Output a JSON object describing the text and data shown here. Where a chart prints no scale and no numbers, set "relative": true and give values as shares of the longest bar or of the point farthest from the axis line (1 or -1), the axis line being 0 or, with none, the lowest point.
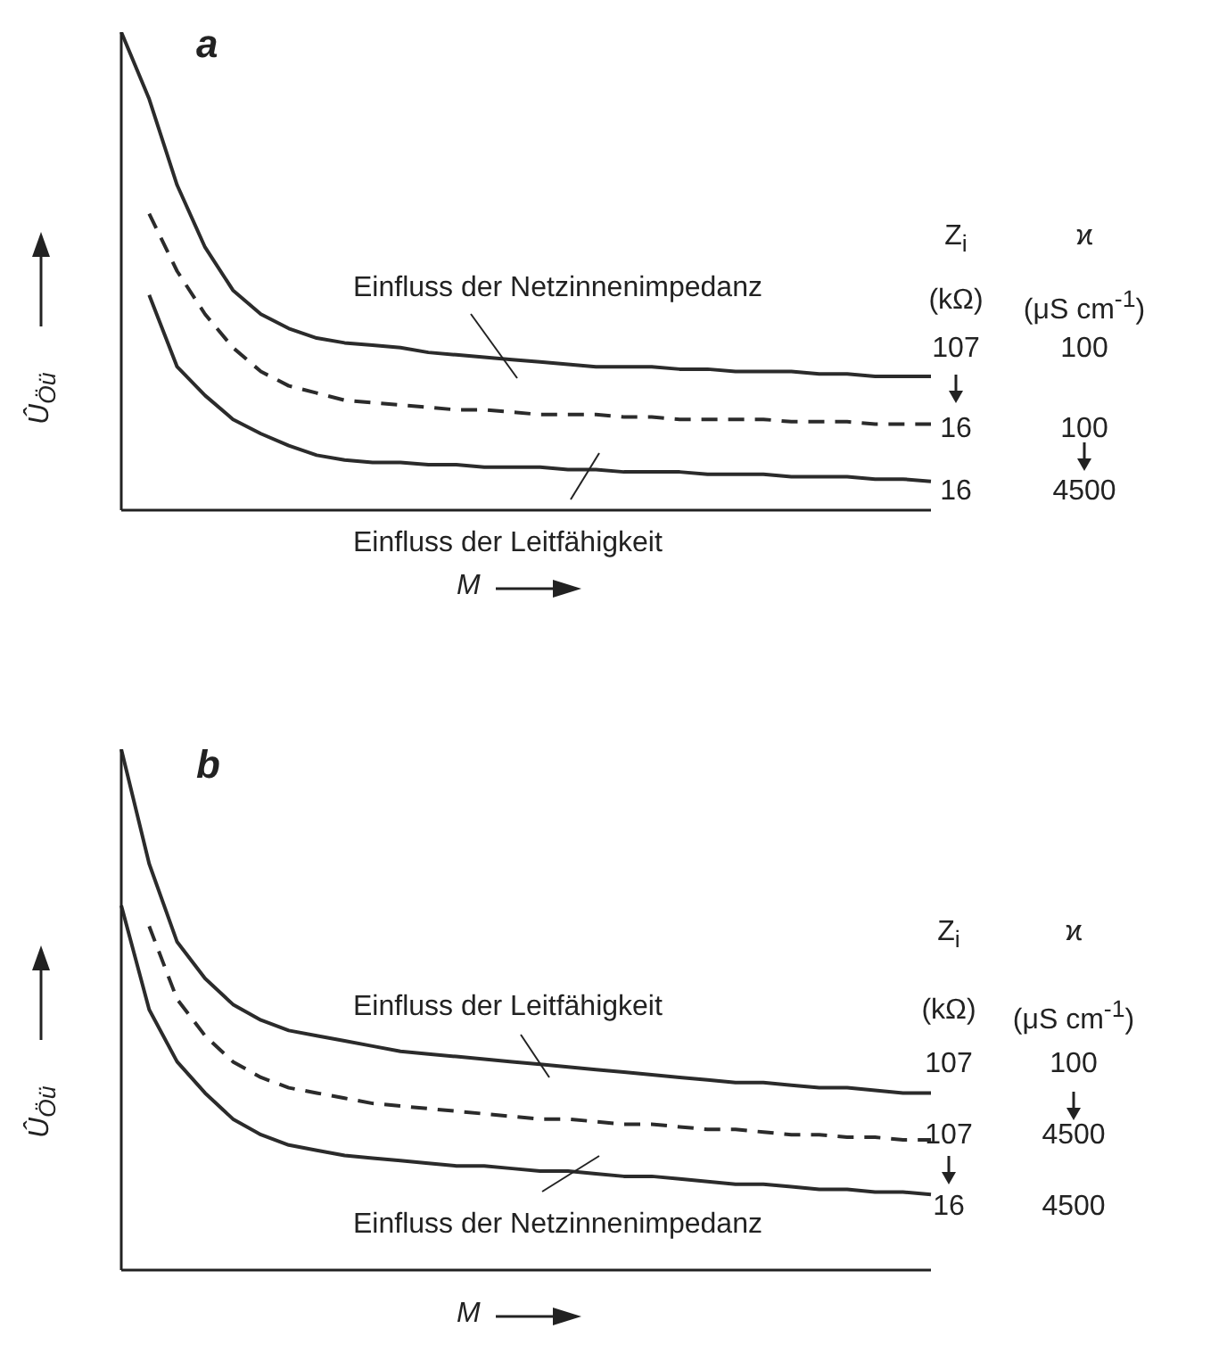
{
  "chart_data": [
    {
      "type": "line",
      "title": "a",
      "xlabel": "M",
      "ylabel": "Û$_{Öü}$",
      "relative": true,
      "legend": false,
      "grid": false,
      "marker": "none",
      "categories": [
        null,
        null,
        null,
        null,
        null,
        null,
        null,
        null,
        null,
        null,
        null,
        null,
        null,
        null,
        null,
        null,
        null,
        null,
        null,
        null,
        null,
        null,
        null,
        null,
        null,
        null,
        null,
        null,
        null,
        null
      ],
      "series": [
        {
          "color": "#2b2b2b",
          "line_style": "solid",
          "values": [
            1.0,
            0.86,
            0.68,
            0.55,
            0.46,
            0.41,
            0.38,
            0.36,
            0.35,
            0.345,
            0.34,
            0.33,
            0.325,
            0.32,
            0.315,
            0.31,
            0.305,
            0.3,
            0.3,
            0.3,
            0.295,
            0.295,
            0.29,
            0.29,
            0.29,
            0.285,
            0.285,
            0.28,
            0.28,
            0.28
          ]
        },
        {
          "color": "#2b2b2b",
          "line_style": "dashed",
          "values": [
            null,
            0.62,
            0.5,
            0.41,
            0.34,
            0.29,
            0.26,
            0.245,
            0.23,
            0.225,
            0.22,
            0.215,
            0.21,
            0.21,
            0.205,
            0.2,
            0.2,
            0.2,
            0.195,
            0.195,
            0.19,
            0.19,
            0.19,
            0.19,
            0.185,
            0.185,
            0.185,
            0.18,
            0.18,
            0.18
          ]
        },
        {
          "color": "#2b2b2b",
          "line_style": "solid",
          "values": [
            null,
            0.45,
            0.3,
            0.24,
            0.19,
            0.16,
            0.135,
            0.115,
            0.105,
            0.1,
            0.1,
            0.095,
            0.095,
            0.09,
            0.09,
            0.09,
            0.085,
            0.085,
            0.08,
            0.08,
            0.08,
            0.075,
            0.075,
            0.075,
            0.07,
            0.07,
            0.07,
            0.065,
            0.065,
            0.06
          ]
        }
      ],
      "annotations": [
        "Einfluss der Netzinnenimpedanz",
        "Einfluss der Leitfähigkeit",
        "Z$_{i}$",
        "ϰ",
        "(kΩ)",
        "(μS cm$^{-1}$)",
        "107",
        "100",
        "16",
        "100",
        "16",
        "4500"
      ]
    },
    {
      "type": "line",
      "title": "b",
      "xlabel": "M",
      "ylabel": "Û$_{Öü}$",
      "relative": true,
      "legend": false,
      "grid": false,
      "marker": "none",
      "categories": [
        null,
        null,
        null,
        null,
        null,
        null,
        null,
        null,
        null,
        null,
        null,
        null,
        null,
        null,
        null,
        null,
        null,
        null,
        null,
        null,
        null,
        null,
        null,
        null,
        null,
        null,
        null,
        null,
        null,
        null
      ],
      "series": [
        {
          "color": "#2b2b2b",
          "line_style": "solid",
          "values": [
            1.0,
            0.78,
            0.63,
            0.56,
            0.51,
            0.48,
            0.46,
            0.45,
            0.44,
            0.43,
            0.42,
            0.415,
            0.41,
            0.405,
            0.4,
            0.395,
            0.39,
            0.385,
            0.38,
            0.375,
            0.37,
            0.365,
            0.36,
            0.36,
            0.355,
            0.35,
            0.35,
            0.345,
            0.34,
            0.34
          ]
        },
        {
          "color": "#2b2b2b",
          "line_style": "dashed",
          "values": [
            null,
            0.66,
            0.52,
            0.45,
            0.4,
            0.37,
            0.35,
            0.34,
            0.33,
            0.32,
            0.315,
            0.31,
            0.305,
            0.3,
            0.295,
            0.29,
            0.29,
            0.285,
            0.28,
            0.28,
            0.275,
            0.27,
            0.27,
            0.265,
            0.26,
            0.26,
            0.255,
            0.255,
            0.25,
            0.25
          ]
        },
        {
          "color": "#2b2b2b",
          "line_style": "solid",
          "values": [
            0.7,
            0.5,
            0.4,
            0.34,
            0.29,
            0.26,
            0.24,
            0.23,
            0.22,
            0.215,
            0.21,
            0.205,
            0.2,
            0.2,
            0.195,
            0.19,
            0.19,
            0.185,
            0.18,
            0.18,
            0.175,
            0.17,
            0.165,
            0.165,
            0.16,
            0.155,
            0.155,
            0.15,
            0.15,
            0.145
          ]
        }
      ],
      "annotations": [
        "Einfluss der Leitfähigkeit",
        "Einfluss der Netzinnenimpedanz",
        "Z$_{i}$",
        "ϰ",
        "(kΩ)",
        "(μS cm$^{-1}$)",
        "107",
        "100",
        "107",
        "4500",
        "16",
        "4500"
      ]
    }
  ]
}
